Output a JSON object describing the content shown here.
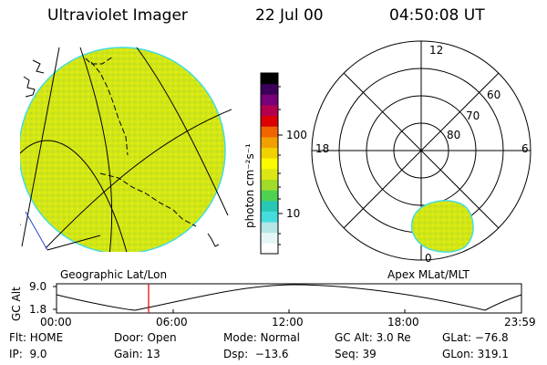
{
  "header": {
    "instrument": "Ultraviolet Imager",
    "date": "22 Jul 00",
    "time": "04:50:08 UT"
  },
  "colorbar": {
    "unit_label": "photon cm⁻²s⁻¹",
    "tick_100": "100",
    "tick_10": "10",
    "colors": [
      "#ffffff",
      "#e6f6f6",
      "#b4e6e6",
      "#46dcdc",
      "#28c8b4",
      "#50d250",
      "#a0dc28",
      "#dce614",
      "#fafa00",
      "#f0d200",
      "#f0a000",
      "#f06400",
      "#dc0000",
      "#b40050",
      "#780078",
      "#3c005a",
      "#000000"
    ]
  },
  "panels": {
    "left_label": "Geographic Lat/Lon",
    "right_label": "Apex MLat/MLT"
  },
  "polar": {
    "mlt_12": "12",
    "mlt_18": "18",
    "mlt_6": "6",
    "mlt_0": "0",
    "lat_60": "60",
    "lat_70": "70",
    "lat_80": "80"
  },
  "altitude_plot": {
    "ylabel": "GC Alt",
    "ytick_max": "9.0",
    "ytick_min": "1.8",
    "xticks": [
      "00:00",
      "06:00",
      "12:00",
      "18:00",
      "23:59"
    ],
    "marker_time": "04:50"
  },
  "info": {
    "flt": "Flt: HOME",
    "door": "Door: Open",
    "mode": "Mode: Normal",
    "gcalt": "GC Alt: 3.0 Re",
    "glat": "GLat: −76.8",
    "ip": "IP:  9.0",
    "gain": "Gain: 13",
    "dsp": "Dsp:  −13.6",
    "seq": "Seq: 39",
    "glon": "GLon: 319.1"
  }
}
